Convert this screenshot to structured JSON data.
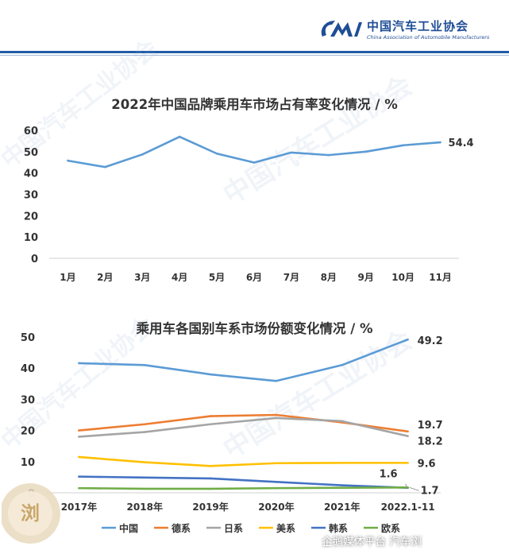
{
  "header": {
    "org_name_cn": "中国汽车工业协会",
    "org_name_en": "China Association of Automobile Manufacturers",
    "brand_color": "#1f4e96"
  },
  "chart_data": [
    {
      "type": "line",
      "title": "2022年中国品牌乘用车市场占有率变化情况 / %",
      "categories": [
        "1月",
        "2月",
        "3月",
        "4月",
        "5月",
        "6月",
        "7月",
        "8月",
        "9月",
        "10月",
        "11月"
      ],
      "series": [
        {
          "values": [
            45.8,
            42.8,
            48.7,
            57.0,
            49.1,
            44.9,
            49.6,
            48.4,
            50.0,
            53.0,
            54.4
          ],
          "color": "#5b9bd5"
        }
      ],
      "ylim": [
        0,
        60
      ],
      "yticks": [
        "0",
        "10",
        "20",
        "30",
        "40",
        "50",
        "60"
      ],
      "data_labels": [
        {
          "index": 10,
          "text": "54.4"
        }
      ],
      "grid": false,
      "xlabel": "",
      "ylabel": ""
    },
    {
      "type": "line",
      "title": "乘用车各国别车系市场份额变化情况 / %",
      "categories": [
        "2017年",
        "2018年",
        "2019年",
        "2020年",
        "2021年",
        "2022.1-11"
      ],
      "series": [
        {
          "name": "中国",
          "values": [
            41.6,
            41.0,
            38.0,
            35.9,
            41.0,
            49.2
          ],
          "color": "#5b9bd5"
        },
        {
          "name": "德系",
          "values": [
            20.0,
            22.0,
            24.6,
            25.0,
            22.6,
            19.7
          ],
          "color": "#ed7d31"
        },
        {
          "name": "日系",
          "values": [
            18.0,
            19.5,
            22.0,
            24.0,
            23.0,
            18.2
          ],
          "color": "#a5a5a5"
        },
        {
          "name": "美系",
          "values": [
            11.5,
            9.8,
            8.6,
            9.5,
            9.6,
            9.6
          ],
          "color": "#ffc000"
        },
        {
          "name": "韩系",
          "values": [
            5.2,
            4.9,
            4.6,
            3.5,
            2.4,
            1.6
          ],
          "color": "#4472c4"
        },
        {
          "name": "欧系",
          "values": [
            1.5,
            1.3,
            1.3,
            1.5,
            1.6,
            1.7
          ],
          "color": "#70ad47"
        }
      ],
      "ylim": [
        0,
        50
      ],
      "yticks": [
        "0",
        "10",
        "20",
        "30",
        "40",
        "50"
      ],
      "end_labels": [
        "49.2",
        "19.7",
        "18.2",
        "9.6",
        "1.6",
        "1.7"
      ],
      "legend_position": "bottom",
      "grid": false,
      "xlabel": "",
      "ylabel": ""
    }
  ],
  "footer": {
    "credit": "企鹅媒体平台 汽车浏",
    "badge_text": "浏"
  }
}
